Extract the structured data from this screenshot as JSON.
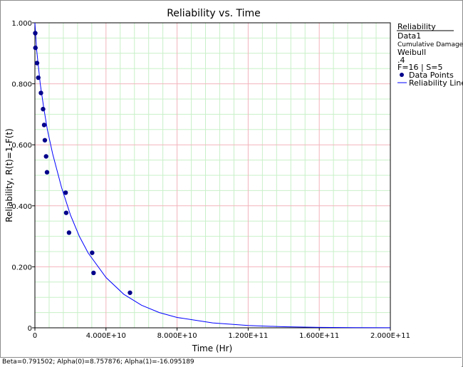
{
  "chart_data": {
    "type": "scatter",
    "title": "Reliability vs. Time",
    "xlabel": "Time (Hr)",
    "ylabel": "Reliability, R(t)=1-F(t)",
    "xlim": [
      0,
      200000000000
    ],
    "ylim": [
      0,
      1
    ],
    "x_ticks": [
      "0",
      "4.000E+10",
      "8.000E+10",
      "1.200E+11",
      "1.600E+11",
      "2.000E+11"
    ],
    "y_ticks": [
      "0",
      "0.200",
      "0.400",
      "0.600",
      "0.800",
      "1.000"
    ],
    "grid": true,
    "series": [
      {
        "name": "Data Points",
        "type": "scatter",
        "color": "#00008b",
        "points": [
          {
            "x": 200000000,
            "y": 0.966
          },
          {
            "x": 300000000,
            "y": 0.918
          },
          {
            "x": 1200000000,
            "y": 0.868
          },
          {
            "x": 1900000000,
            "y": 0.82
          },
          {
            "x": 3400000000,
            "y": 0.77
          },
          {
            "x": 4600000000,
            "y": 0.717
          },
          {
            "x": 5200000000,
            "y": 0.665
          },
          {
            "x": 5600000000,
            "y": 0.615
          },
          {
            "x": 6300000000,
            "y": 0.562
          },
          {
            "x": 6800000000,
            "y": 0.51
          },
          {
            "x": 17300000000,
            "y": 0.443
          },
          {
            "x": 17600000000,
            "y": 0.377
          },
          {
            "x": 19200000000,
            "y": 0.312
          },
          {
            "x": 32200000000,
            "y": 0.246
          },
          {
            "x": 33000000000,
            "y": 0.18
          },
          {
            "x": 53500000000,
            "y": 0.115
          }
        ]
      },
      {
        "name": "Reliability Line",
        "type": "line",
        "color": "#0000ff",
        "points": [
          {
            "x": 0,
            "y": 1.0
          },
          {
            "x": 1000000000,
            "y": 0.91
          },
          {
            "x": 3000000000,
            "y": 0.8
          },
          {
            "x": 5000000000,
            "y": 0.72
          },
          {
            "x": 7000000000,
            "y": 0.65
          },
          {
            "x": 10000000000,
            "y": 0.57
          },
          {
            "x": 15000000000,
            "y": 0.46
          },
          {
            "x": 20000000000,
            "y": 0.37
          },
          {
            "x": 25000000000,
            "y": 0.3
          },
          {
            "x": 30000000000,
            "y": 0.245
          },
          {
            "x": 40000000000,
            "y": 0.165
          },
          {
            "x": 50000000000,
            "y": 0.11
          },
          {
            "x": 60000000000,
            "y": 0.074
          },
          {
            "x": 70000000000,
            "y": 0.05
          },
          {
            "x": 80000000000,
            "y": 0.034
          },
          {
            "x": 100000000000,
            "y": 0.016
          },
          {
            "x": 120000000000,
            "y": 0.0075
          },
          {
            "x": 140000000000,
            "y": 0.0035
          },
          {
            "x": 160000000000,
            "y": 0.0016
          },
          {
            "x": 180000000000,
            "y": 0.0007
          },
          {
            "x": 200000000000,
            "y": 0.0003
          }
        ]
      }
    ],
    "legend": {
      "placement": "top-right",
      "header": "Reliability",
      "lines": [
        "Data1",
        "Cumulative Damage",
        "Weibull",
        ".4",
        "F=16 | S=5"
      ],
      "items": [
        "Data Points",
        "Reliability Line"
      ]
    }
  },
  "footer": {
    "text": "Beta=0.791502; Alpha(0)=8.757876; Alpha(1)=-16.095189"
  }
}
